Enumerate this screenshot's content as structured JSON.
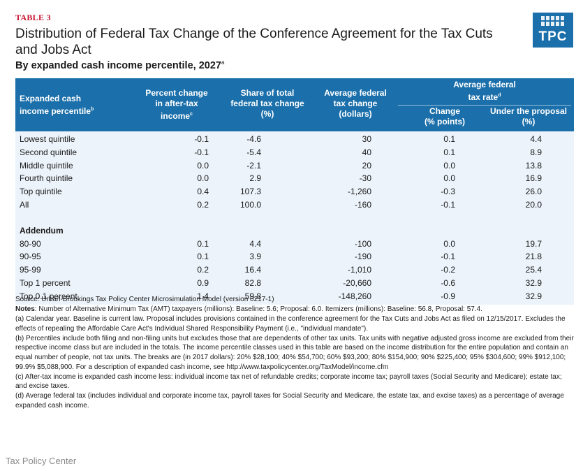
{
  "header": {
    "table_label": "TABLE 3",
    "title": "Distribution of Federal Tax Change of the Conference Agreement for the Tax Cuts and Jobs Act",
    "subtitle": "By expanded cash income percentile, 2027",
    "subtitle_note": "a"
  },
  "logo": {
    "text": "TPC",
    "color": "#1b6faa"
  },
  "table": {
    "header_color": "#1b6faa",
    "body_color": "#ecf3fa",
    "columns": {
      "col0": {
        "line1": "Expanded cash",
        "line2": "income percentile",
        "note": "b"
      },
      "col1": {
        "line1": "Percent change",
        "line2": "in after-tax",
        "line3": "income",
        "note": "c"
      },
      "col2": {
        "line1": "Share of total",
        "line2": "federal tax change",
        "line3": "(%)"
      },
      "col3": {
        "line1": "Average federal",
        "line2": "tax change",
        "line3": "(dollars)"
      },
      "group": {
        "line1": "Average federal",
        "line2": "tax rate",
        "note": "d"
      },
      "col4": {
        "line1": "Change",
        "line2": "(% points)"
      },
      "col5": {
        "line1": "Under the proposal",
        "line2": "(%)"
      }
    },
    "rows": [
      [
        "Lowest quintile",
        "-0.1",
        "-4.6",
        "30",
        "0.1",
        "4.4"
      ],
      [
        "Second quintile",
        "-0.1",
        "-5.4",
        "40",
        "0.1",
        "8.9"
      ],
      [
        "Middle quintile",
        "0.0",
        "-2.1",
        "20",
        "0.0",
        "13.8"
      ],
      [
        "Fourth quintile",
        "0.0",
        "2.9",
        "-30",
        "0.0",
        "16.9"
      ],
      [
        "Top quintile",
        "0.4",
        "107.3",
        "-1,260",
        "-0.3",
        "26.0"
      ],
      [
        "All",
        "0.2",
        "100.0",
        "-160",
        "-0.1",
        "20.0"
      ]
    ],
    "addendum_label": "Addendum",
    "addendum_rows": [
      [
        "80-90",
        "0.1",
        "4.4",
        "-100",
        "0.0",
        "19.7"
      ],
      [
        "90-95",
        "0.1",
        "3.9",
        "-190",
        "-0.1",
        "21.8"
      ],
      [
        "95-99",
        "0.2",
        "16.4",
        "-1,010",
        "-0.2",
        "25.4"
      ],
      [
        "Top 1 percent",
        "0.9",
        "82.8",
        "-20,660",
        "-0.6",
        "32.9"
      ],
      [
        "Top 0.1 percent",
        "1.4",
        "59.8",
        "-148,260",
        "-0.9",
        "32.9"
      ]
    ]
  },
  "notes": {
    "source": "Source: Urban-Brookings Tax Policy Center Microsimulation Model (version 0217-1)",
    "notes_label": "Notes",
    "notes_text": ": Number of Alternative Minimum Tax (AMT) taxpayers (millions): Baseline: 5.6; Proposal: 6.0. Itemizers (millions): Baseline: 56.8, Proposal: 57.4.",
    "a": "(a) Calendar year. Baseline is current law. Proposal includes provisions contained in the conference agreement for the Tax Cuts and Jobs Act as filed on 12/15/2017. Excludes the effects of repealing the Affordable Care Act's Individual Shared Responsibility Payment (i.e., \"individual mandate\").",
    "b": "(b) Percentiles include both filing and non-filing units but excludes those that are dependents of other tax units. Tax units with negative adjusted gross income are excluded from their respective income class but are included in the totals. The income percentile classes used in this table are based on the income distribution for the entire population and contain an equal number of people, not tax units. The breaks are (in 2017 dollars): 20% $28,100; 40% $54,700; 60% $93,200; 80% $154,900; 90% $225,400; 95% $304,600; 99% $912,100; 99.9% $5,088,900. For a description of expanded cash income, see http://www.taxpolicycenter.org/TaxModel/income.cfm",
    "c": "(c) After-tax income is expanded cash income less: individual income tax net of refundable credits; corporate income tax; payroll taxes (Social Security and Medicare); estate tax; and excise taxes.",
    "d": "(d) Average federal tax (includes individual and corporate income tax, payroll taxes for Social Security and Medicare, the estate tax, and excise taxes) as a percentage of average expanded cash income."
  },
  "footer": {
    "text": "Tax Policy Center"
  }
}
